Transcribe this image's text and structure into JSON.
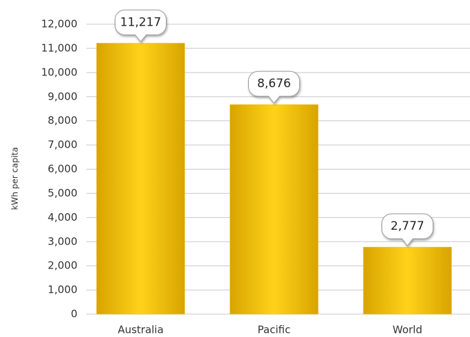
{
  "chart_data": {
    "type": "bar",
    "y_label": "kWh per capita",
    "categories": [
      "Australia",
      "Pacific",
      "World"
    ],
    "values": [
      11217,
      8676,
      2777
    ],
    "value_labels": [
      "11,217",
      "8,676",
      "2,777"
    ],
    "color": "#f2c200",
    "ylim": [
      0,
      12000
    ],
    "yticks": [
      0,
      {
        "value": 1000,
        "label": "1,000"
      },
      {
        "value": 2000,
        "label": "2,000"
      },
      {
        "value": 3000,
        "label": "3,000"
      },
      {
        "value": 4000,
        "label": "4,000"
      },
      {
        "value": 5000,
        "label": "5,000"
      },
      {
        "value": 6000,
        "label": "6,000"
      },
      {
        "value": 7000,
        "label": "7,000"
      },
      {
        "value": 8000,
        "label": "8,000"
      },
      {
        "value": 9000,
        "label": "9,000"
      },
      {
        "value": 10000,
        "label": "10,000"
      },
      {
        "value": 11000,
        "label": "11,000"
      },
      {
        "value": 12000,
        "label": "12,000"
      }
    ],
    "grid": true
  }
}
